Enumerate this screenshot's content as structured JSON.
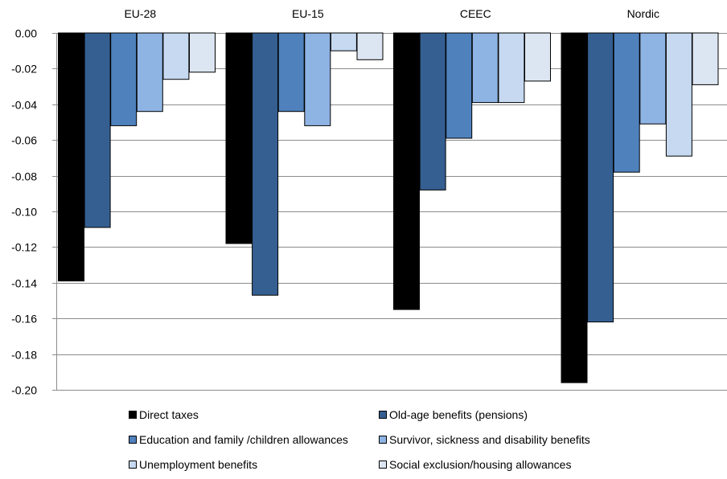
{
  "chart_data": {
    "type": "bar",
    "groups": [
      "EU-28",
      "EU-15",
      "CEEC",
      "Nordic"
    ],
    "ylim": [
      -0.2,
      0.0
    ],
    "yticks": [
      0.0,
      -0.02,
      -0.04,
      -0.06,
      -0.08,
      -0.1,
      -0.12,
      -0.14,
      -0.16,
      -0.18,
      -0.2
    ],
    "ytick_labels": [
      "0.00",
      "-0.02",
      "-0.04",
      "-0.06",
      "-0.08",
      "-0.10",
      "-0.12",
      "-0.14",
      "-0.16",
      "-0.18",
      "-0.20"
    ],
    "grid": true,
    "legend_position": "bottom",
    "series": [
      {
        "name": "Direct taxes",
        "color": "#000000",
        "values": [
          -0.139,
          -0.118,
          -0.155,
          -0.196
        ]
      },
      {
        "name": "Old-age benefits (pensions)",
        "color": "#355F91",
        "values": [
          -0.109,
          -0.147,
          -0.088,
          -0.162
        ]
      },
      {
        "name": "Education and family /children allowances",
        "color": "#4F81BD",
        "values": [
          -0.052,
          -0.044,
          -0.059,
          -0.078
        ]
      },
      {
        "name": "Survivor, sickness and disability benefits",
        "color": "#8EB4E3",
        "values": [
          -0.044,
          -0.052,
          -0.039,
          -0.051
        ]
      },
      {
        "name": "Unemployment benefits",
        "color": "#C6D9F1",
        "values": [
          -0.026,
          -0.01,
          -0.039,
          -0.069
        ]
      },
      {
        "name": "Social exclusion/housing allowances",
        "color": "#DCE6F2",
        "values": [
          -0.022,
          -0.015,
          -0.027,
          -0.029
        ]
      }
    ]
  }
}
